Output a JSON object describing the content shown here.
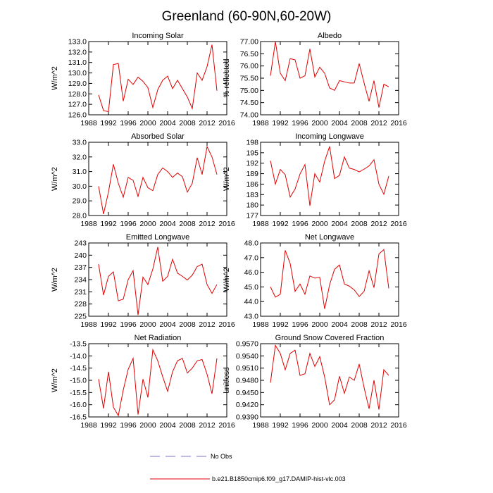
{
  "title": "Greenland (60-90N,60-20W)",
  "colors": {
    "model": "#e00000",
    "obs": "#7777cc",
    "axis": "#000000"
  },
  "legend": [
    {
      "label": "No Obs",
      "style": "dashed",
      "color": "#7777cc"
    },
    {
      "label": "b.e21.B1850cmip6.f09_g17.DAMIP-hist-vlc.003",
      "style": "solid",
      "color": "#e00000"
    }
  ],
  "chart_data": [
    {
      "type": "line",
      "title": "Incoming Solar",
      "ylabel": "W/m^2",
      "xlim": [
        1988,
        2016
      ],
      "ylim": [
        126,
        133
      ],
      "xticks": [
        "1988",
        "1992",
        "1996",
        "2000",
        "2004",
        "2008",
        "2012",
        "2016"
      ],
      "yticks": [
        "126.0",
        "127.0",
        "128.0",
        "129.0",
        "130.0",
        "131.0",
        "132.0",
        "133.0"
      ],
      "series": [
        {
          "name": "b.e21.B1850cmip6.f09_g17.DAMIP-hist-vlc.003",
          "x": [
            1990,
            1991,
            1992,
            1993,
            1994,
            1995,
            1996,
            1997,
            1998,
            1999,
            2000,
            2001,
            2002,
            2003,
            2004,
            2005,
            2006,
            2007,
            2008,
            2009,
            2010,
            2011,
            2012,
            2013,
            2014
          ],
          "y": [
            127.9,
            126.4,
            126.3,
            130.8,
            130.9,
            127.3,
            129.4,
            128.9,
            129.6,
            129.2,
            128.6,
            126.7,
            128.4,
            129.3,
            129.7,
            128.5,
            129.3,
            128.5,
            127.7,
            126.6,
            130.0,
            129.3,
            130.6,
            132.7,
            128.3
          ]
        }
      ]
    },
    {
      "type": "line",
      "title": "Albedo",
      "ylabel": "% reflected",
      "xlim": [
        1988,
        2016
      ],
      "ylim": [
        74,
        77
      ],
      "xticks": [
        "1988",
        "1992",
        "1996",
        "2000",
        "2004",
        "2008",
        "2012",
        "2016"
      ],
      "yticks": [
        "74.00",
        "74.50",
        "75.00",
        "75.50",
        "76.00",
        "76.50",
        "77.00"
      ],
      "series": [
        {
          "name": "b.e21.B1850cmip6.f09_g17.DAMIP-hist-vlc.003",
          "x": [
            1990,
            1991,
            1992,
            1993,
            1994,
            1995,
            1996,
            1997,
            1998,
            1999,
            2000,
            2001,
            2002,
            2003,
            2004,
            2005,
            2006,
            2007,
            2008,
            2009,
            2010,
            2011,
            2012,
            2013,
            2014
          ],
          "y": [
            75.6,
            77.0,
            75.7,
            75.4,
            76.3,
            76.25,
            75.5,
            75.6,
            76.7,
            75.55,
            75.95,
            75.7,
            75.1,
            75.0,
            75.4,
            75.35,
            75.3,
            75.3,
            76.1,
            75.3,
            74.55,
            75.4,
            74.3,
            75.25,
            75.15
          ]
        }
      ]
    },
    {
      "type": "line",
      "title": "Absorbed Solar",
      "ylabel": "W/m^2",
      "xlim": [
        1988,
        2016
      ],
      "ylim": [
        28,
        33
      ],
      "xticks": [
        "1988",
        "1992",
        "1996",
        "2000",
        "2004",
        "2008",
        "2012",
        "2016"
      ],
      "yticks": [
        "28.0",
        "29.0",
        "30.0",
        "31.0",
        "32.0",
        "33.0"
      ],
      "series": [
        {
          "name": "b.e21.B1850cmip6.f09_g17.DAMIP-hist-vlc.003",
          "x": [
            1990,
            1991,
            1992,
            1993,
            1994,
            1995,
            1996,
            1997,
            1998,
            1999,
            2000,
            2001,
            2002,
            2003,
            2004,
            2005,
            2006,
            2007,
            2008,
            2009,
            2010,
            2011,
            2012,
            2013,
            2014
          ],
          "y": [
            30.0,
            28.1,
            29.6,
            31.5,
            30.2,
            29.25,
            30.6,
            30.4,
            29.3,
            30.6,
            29.9,
            29.7,
            30.8,
            31.25,
            31.0,
            30.6,
            30.9,
            30.65,
            29.6,
            30.2,
            31.95,
            30.8,
            32.7,
            32.0,
            30.8
          ]
        }
      ]
    },
    {
      "type": "line",
      "title": "Incoming Longwave",
      "ylabel": "W/m^2",
      "xlim": [
        1988,
        2016
      ],
      "ylim": [
        177,
        198
      ],
      "xticks": [
        "1988",
        "1992",
        "1996",
        "2000",
        "2004",
        "2008",
        "2012",
        "2016"
      ],
      "yticks": [
        "177",
        "180",
        "183",
        "186",
        "189",
        "192",
        "195",
        "198"
      ],
      "series": [
        {
          "name": "b.e21.B1850cmip6.f09_g17.DAMIP-hist-vlc.003",
          "x": [
            1990,
            1991,
            1992,
            1993,
            1994,
            1995,
            1996,
            1997,
            1998,
            1999,
            2000,
            2001,
            2002,
            2003,
            2004,
            2005,
            2006,
            2007,
            2008,
            2009,
            2010,
            2011,
            2012,
            2013,
            2014
          ],
          "y": [
            192.7,
            186.0,
            190.2,
            188.7,
            182.3,
            184.6,
            188.9,
            191.6,
            179.8,
            189.0,
            186.6,
            192.6,
            196.8,
            187.6,
            188.5,
            193.8,
            190.6,
            190.2,
            189.5,
            190.3,
            191.2,
            193.0,
            186.0,
            183.1,
            188.3
          ]
        }
      ]
    },
    {
      "type": "line",
      "title": "Emitted Longwave",
      "ylabel": "W/m^2",
      "xlim": [
        1988,
        2016
      ],
      "ylim": [
        225,
        243
      ],
      "xticks": [
        "1988",
        "1992",
        "1996",
        "2000",
        "2004",
        "2008",
        "2012",
        "2016"
      ],
      "yticks": [
        "225",
        "228",
        "231",
        "234",
        "237",
        "240",
        "243"
      ],
      "series": [
        {
          "name": "b.e21.B1850cmip6.f09_g17.DAMIP-hist-vlc.003",
          "x": [
            1990,
            1991,
            1992,
            1993,
            1994,
            1995,
            1996,
            1997,
            1998,
            1999,
            2000,
            2001,
            2002,
            2003,
            2004,
            2005,
            2006,
            2007,
            2008,
            2009,
            2010,
            2011,
            2012,
            2013,
            2014
          ],
          "y": [
            237.8,
            230.2,
            234.8,
            235.9,
            228.8,
            229.2,
            234.0,
            236.2,
            225.3,
            234.6,
            232.8,
            236.6,
            242.0,
            233.6,
            234.8,
            239.0,
            235.6,
            234.8,
            233.9,
            235.1,
            237.2,
            237.8,
            232.8,
            230.6,
            232.8
          ]
        }
      ]
    },
    {
      "type": "line",
      "title": "Net Longwave",
      "ylabel": "W/m^2",
      "xlim": [
        1988,
        2016
      ],
      "ylim": [
        43,
        48
      ],
      "xticks": [
        "1988",
        "1992",
        "1996",
        "2000",
        "2004",
        "2008",
        "2012",
        "2016"
      ],
      "yticks": [
        "43.0",
        "44.0",
        "45.0",
        "46.0",
        "47.0",
        "48.0"
      ],
      "series": [
        {
          "name": "b.e21.B1850cmip6.f09_g17.DAMIP-hist-vlc.003",
          "x": [
            1990,
            1991,
            1992,
            1993,
            1994,
            1995,
            1996,
            1997,
            1998,
            1999,
            2000,
            2001,
            2002,
            2003,
            2004,
            2005,
            2006,
            2007,
            2008,
            2009,
            2010,
            2011,
            2012,
            2013,
            2014
          ],
          "y": [
            45.0,
            44.3,
            44.5,
            47.5,
            46.6,
            44.7,
            45.2,
            44.5,
            45.75,
            45.6,
            45.65,
            43.5,
            45.15,
            46.2,
            46.5,
            45.2,
            45.05,
            44.8,
            44.35,
            44.7,
            46.1,
            44.95,
            47.25,
            47.55,
            44.9
          ]
        }
      ]
    },
    {
      "type": "line",
      "title": "Net Radiation",
      "ylabel": "W/m^2",
      "xlim": [
        1988,
        2016
      ],
      "ylim": [
        -16.5,
        -13.5
      ],
      "xticks": [
        "1988",
        "1992",
        "1996",
        "2000",
        "2004",
        "2008",
        "2012",
        "2016"
      ],
      "yticks": [
        "-16.5",
        "-16.0",
        "-15.5",
        "-15.0",
        "-14.5",
        "-14.0",
        "-13.5"
      ],
      "series": [
        {
          "name": "b.e21.B1850cmip6.f09_g17.DAMIP-hist-vlc.003",
          "x": [
            1990,
            1991,
            1992,
            1993,
            1994,
            1995,
            1996,
            1997,
            1998,
            1999,
            2000,
            2001,
            2002,
            2003,
            2004,
            2005,
            2006,
            2007,
            2008,
            2009,
            2010,
            2011,
            2012,
            2013,
            2014
          ],
          "y": [
            -14.95,
            -16.15,
            -14.65,
            -16.1,
            -16.45,
            -15.4,
            -14.55,
            -14.1,
            -16.4,
            -14.95,
            -15.7,
            -13.75,
            -14.2,
            -14.85,
            -15.45,
            -14.65,
            -14.2,
            -14.1,
            -14.7,
            -14.5,
            -14.2,
            -14.15,
            -14.75,
            -15.55,
            -14.1
          ]
        }
      ]
    },
    {
      "type": "line",
      "title": "Ground Snow Covered Fraction",
      "ylabel": "unitless",
      "xlim": [
        1988,
        2016
      ],
      "ylim": [
        0.939,
        0.957
      ],
      "xticks": [
        "1988",
        "1992",
        "1996",
        "2000",
        "2004",
        "2008",
        "2012",
        "2016"
      ],
      "yticks": [
        "0.9390",
        "0.9420",
        "0.9450",
        "0.9480",
        "0.9510",
        "0.9540",
        "0.9570"
      ],
      "series": [
        {
          "name": "b.e21.B1850cmip6.f09_g17.DAMIP-hist-vlc.003",
          "x": [
            1990,
            1991,
            1992,
            1993,
            1994,
            1995,
            1996,
            1997,
            1998,
            1999,
            2000,
            2001,
            2002,
            2003,
            2004,
            2005,
            2006,
            2007,
            2008,
            2009,
            2010,
            2011,
            2012,
            2013,
            2014
          ],
          "y": [
            0.9474,
            0.9566,
            0.9546,
            0.9506,
            0.9546,
            0.9554,
            0.9492,
            0.9496,
            0.9546,
            0.9514,
            0.9538,
            0.9488,
            0.942,
            0.9432,
            0.949,
            0.9448,
            0.9488,
            0.948,
            0.952,
            0.9462,
            0.941,
            0.948,
            0.9408,
            0.9506,
            0.9492
          ]
        }
      ]
    }
  ]
}
